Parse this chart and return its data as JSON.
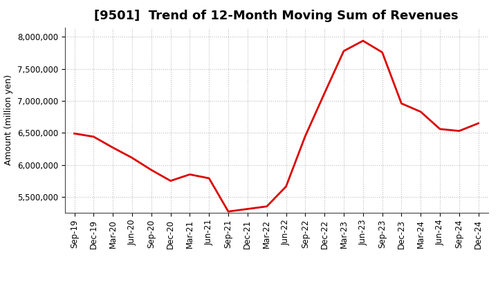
{
  "title": "[9501]  Trend of 12-Month Moving Sum of Revenues",
  "ylabel": "Amount (million yen)",
  "line_color": "#DD0000",
  "background_color": "#FFFFFF",
  "plot_bg_color": "#FFFFFF",
  "ylim": [
    5250000,
    8150000
  ],
  "yticks": [
    5500000,
    6000000,
    6500000,
    7000000,
    7500000,
    8000000
  ],
  "x_labels": [
    "Sep-19",
    "Dec-19",
    "Mar-20",
    "Jun-20",
    "Sep-20",
    "Dec-20",
    "Mar-21",
    "Jun-21",
    "Sep-21",
    "Dec-21",
    "Mar-22",
    "Jun-22",
    "Sep-22",
    "Dec-22",
    "Mar-23",
    "Jun-23",
    "Sep-23",
    "Dec-23",
    "Mar-24",
    "Jun-24",
    "Sep-24",
    "Dec-24"
  ],
  "values": [
    6490000,
    6440000,
    6270000,
    6110000,
    5920000,
    5750000,
    5850000,
    5790000,
    5270000,
    5310000,
    5350000,
    5660000,
    6450000,
    7120000,
    7780000,
    7940000,
    7760000,
    6960000,
    6830000,
    6560000,
    6530000,
    6650000
  ],
  "title_fontsize": 13,
  "ylabel_fontsize": 9,
  "tick_fontsize": 8.5,
  "grid_color": "#BBBBBB",
  "line_width": 2.0
}
